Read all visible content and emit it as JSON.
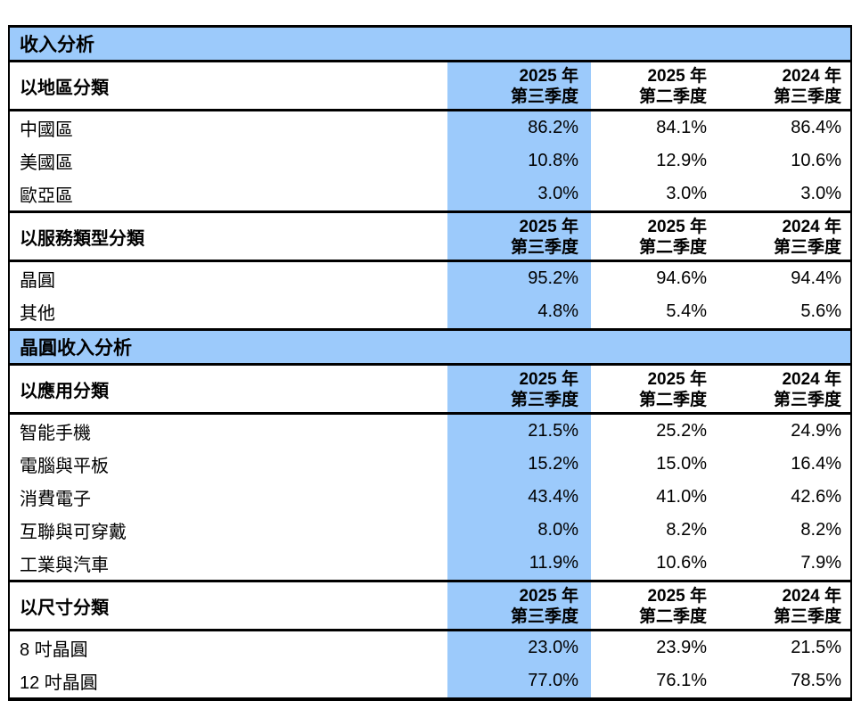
{
  "colors": {
    "highlight_blue": "#9CCAFB",
    "border": "#000000",
    "text": "#000000",
    "page_background": "#FFFFFF"
  },
  "bands": {
    "revenue": "收入分析",
    "wafer": "晶圓收入分析"
  },
  "quarters": [
    {
      "line1": "2025 年",
      "line2": "第三季度",
      "highlighted": true
    },
    {
      "line1": "2025 年",
      "line2": "第二季度",
      "highlighted": false
    },
    {
      "line1": "2024 年",
      "line2": "第三季度",
      "highlighted": false
    }
  ],
  "groups": {
    "region": {
      "label": "以地區分類",
      "rows": [
        {
          "label": "中國區",
          "values": [
            "86.2%",
            "84.1%",
            "86.4%"
          ]
        },
        {
          "label": "美國區",
          "values": [
            "10.8%",
            "12.9%",
            "10.6%"
          ]
        },
        {
          "label": "歐亞區",
          "values": [
            "3.0%",
            "3.0%",
            "3.0%"
          ]
        }
      ]
    },
    "service": {
      "label": "以服務類型分類",
      "rows": [
        {
          "label": "晶圓",
          "values": [
            "95.2%",
            "94.6%",
            "94.4%"
          ]
        },
        {
          "label": "其他",
          "values": [
            "4.8%",
            "5.4%",
            "5.6%"
          ]
        }
      ]
    },
    "application": {
      "label": "以應用分類",
      "rows": [
        {
          "label": "智能手機",
          "values": [
            "21.5%",
            "25.2%",
            "24.9%"
          ]
        },
        {
          "label": "電腦與平板",
          "values": [
            "15.2%",
            "15.0%",
            "16.4%"
          ]
        },
        {
          "label": "消費電子",
          "values": [
            "43.4%",
            "41.0%",
            "42.6%"
          ]
        },
        {
          "label": "互聯與可穿戴",
          "values": [
            "8.0%",
            "8.2%",
            "8.2%"
          ]
        },
        {
          "label": "工業與汽車",
          "values": [
            "11.9%",
            "10.6%",
            "7.9%"
          ]
        }
      ]
    },
    "size": {
      "label": "以尺寸分類",
      "rows": [
        {
          "label": "8 吋晶圓",
          "values": [
            "23.0%",
            "23.9%",
            "21.5%"
          ]
        },
        {
          "label": "12 吋晶圓",
          "values": [
            "77.0%",
            "76.1%",
            "78.5%"
          ]
        }
      ]
    }
  }
}
